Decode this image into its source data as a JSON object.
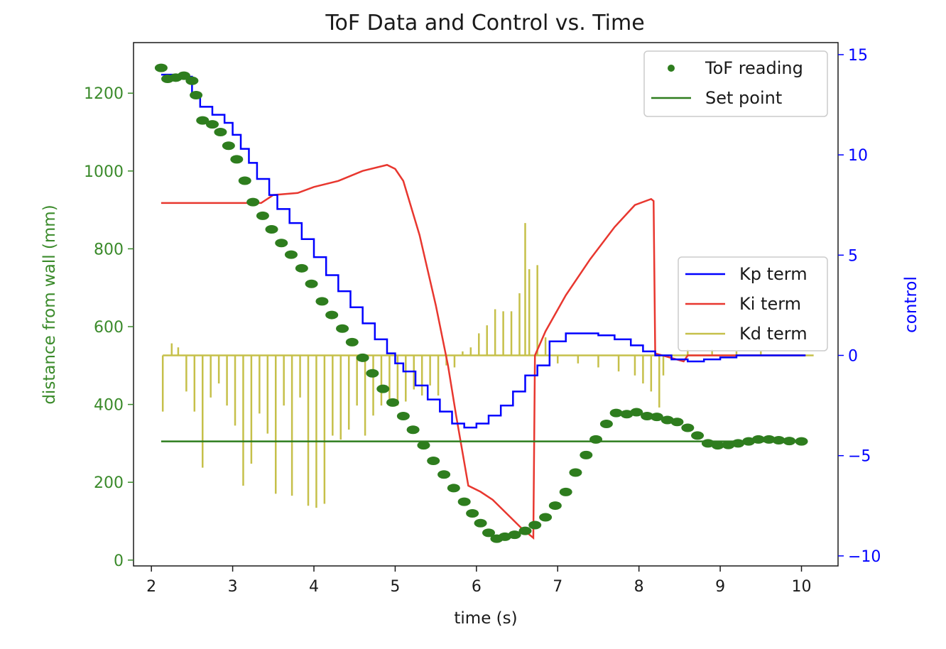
{
  "chart_data": {
    "type": "line",
    "title": "ToF Data and Control vs. Time",
    "xlabel": "time (s)",
    "ylabel_left": "distance from wall (mm)",
    "ylabel_right": "control",
    "xlim": [
      1.78,
      10.45
    ],
    "ylim_left": [
      -15,
      1330
    ],
    "ylim_right": [
      -10.5,
      15.6
    ],
    "x_ticks": [
      2,
      3,
      4,
      5,
      6,
      7,
      8,
      9,
      10
    ],
    "y_left_ticks": [
      0,
      200,
      400,
      600,
      800,
      1000,
      1200
    ],
    "y_right_ticks": [
      -10,
      -5,
      0,
      5,
      10,
      15
    ],
    "y_right_tick_labels": [
      "−10",
      "−5",
      "0",
      "5",
      "10",
      "15"
    ],
    "colors": {
      "tof": "#2e7d1e",
      "setpoint": "#2e7d1e",
      "kp": "#0000ff",
      "ki": "#e8372f",
      "kd": "#c6c04a",
      "left_axis": "#3a8a2a",
      "right_axis": "#0000ff"
    },
    "legends": [
      {
        "position": "upper-right",
        "entries": [
          {
            "label": "ToF reading",
            "key": "tof"
          },
          {
            "label": "Set point",
            "key": "setpoint"
          }
        ]
      },
      {
        "position": "center-right",
        "entries": [
          {
            "label": "Kp term",
            "key": "kp"
          },
          {
            "label": "Ki term",
            "key": "ki"
          },
          {
            "label": "Kd term",
            "key": "kd"
          }
        ]
      }
    ],
    "series": [
      {
        "name": "ToF reading",
        "axis": "left",
        "style": "scatter",
        "x": [
          2.12,
          2.2,
          2.3,
          2.4,
          2.5,
          2.55,
          2.63,
          2.75,
          2.85,
          2.95,
          3.05,
          3.15,
          3.25,
          3.37,
          3.48,
          3.6,
          3.72,
          3.85,
          3.97,
          4.1,
          4.22,
          4.35,
          4.47,
          4.6,
          4.72,
          4.85,
          4.97,
          5.1,
          5.22,
          5.35,
          5.47,
          5.6,
          5.72,
          5.85,
          5.95,
          6.05,
          6.15,
          6.25,
          6.35,
          6.47,
          6.6,
          6.72,
          6.85,
          6.97,
          7.1,
          7.22,
          7.35,
          7.47,
          7.6,
          7.72,
          7.85,
          7.97,
          8.1,
          8.22,
          8.35,
          8.47,
          8.6,
          8.72,
          8.85,
          8.97,
          9.1,
          9.22,
          9.35,
          9.47,
          9.6,
          9.72,
          9.85,
          10.0
        ],
        "y": [
          1265,
          1237,
          1240,
          1245,
          1232,
          1195,
          1130,
          1120,
          1100,
          1065,
          1030,
          975,
          920,
          885,
          850,
          815,
          785,
          750,
          710,
          665,
          630,
          595,
          560,
          520,
          480,
          440,
          405,
          370,
          335,
          295,
          255,
          220,
          185,
          150,
          120,
          95,
          70,
          55,
          60,
          65,
          75,
          90,
          110,
          140,
          175,
          225,
          270,
          310,
          350,
          378,
          375,
          380,
          370,
          368,
          360,
          355,
          340,
          320,
          300,
          295,
          296,
          300,
          305,
          310,
          310,
          308,
          306,
          305
        ]
      },
      {
        "name": "Set point",
        "axis": "left",
        "style": "line",
        "x": [
          2.12,
          10.05
        ],
        "y": [
          305,
          305
        ]
      },
      {
        "name": "Kp term",
        "axis": "right",
        "style": "step",
        "x": [
          2.12,
          2.3,
          2.5,
          2.6,
          2.75,
          2.9,
          3.0,
          3.1,
          3.2,
          3.3,
          3.45,
          3.55,
          3.7,
          3.85,
          4.0,
          4.15,
          4.3,
          4.45,
          4.6,
          4.75,
          4.9,
          5.0,
          5.1,
          5.25,
          5.4,
          5.55,
          5.7,
          5.85,
          6.0,
          6.15,
          6.3,
          6.45,
          6.6,
          6.75,
          6.9,
          7.1,
          7.3,
          7.5,
          7.7,
          7.9,
          8.05,
          8.2,
          8.4,
          8.6,
          8.8,
          9.0,
          9.2,
          9.5,
          9.8,
          10.05
        ],
        "y": [
          14.0,
          13.9,
          13.0,
          12.4,
          12.0,
          11.6,
          11.0,
          10.3,
          9.6,
          8.8,
          8.0,
          7.3,
          6.6,
          5.8,
          4.9,
          4.0,
          3.2,
          2.4,
          1.6,
          0.8,
          0.1,
          -0.4,
          -0.8,
          -1.5,
          -2.2,
          -2.8,
          -3.4,
          -3.6,
          -3.4,
          -3.0,
          -2.5,
          -1.8,
          -1.0,
          -0.5,
          0.7,
          1.1,
          1.1,
          1.0,
          0.8,
          0.5,
          0.2,
          0.0,
          -0.2,
          -0.3,
          -0.2,
          -0.1,
          0.0,
          0.0,
          0.0,
          0.0
        ]
      },
      {
        "name": "Ki term",
        "axis": "right",
        "style": "line",
        "x": [
          2.12,
          2.6,
          3.0,
          3.35,
          3.5,
          3.8,
          4.0,
          4.3,
          4.6,
          4.9,
          5.0,
          5.1,
          5.3,
          5.5,
          5.65,
          5.75,
          5.9,
          6.05,
          6.2,
          6.4,
          6.55,
          6.7,
          6.72,
          6.85,
          7.1,
          7.4,
          7.7,
          7.95,
          8.15,
          8.18,
          8.2,
          8.55,
          8.6,
          9.0,
          9.5,
          10.05
        ],
        "y": [
          7.6,
          7.6,
          7.6,
          7.6,
          8.0,
          8.1,
          8.4,
          8.7,
          9.2,
          9.5,
          9.3,
          8.7,
          6.0,
          2.5,
          -0.5,
          -3.0,
          -6.5,
          -6.8,
          -7.2,
          -8.0,
          -8.6,
          -9.1,
          0.0,
          1.2,
          3.0,
          4.8,
          6.4,
          7.5,
          7.8,
          7.7,
          0.1,
          -0.3,
          0.0,
          0.0,
          0.0,
          0.0
        ]
      },
      {
        "name": "Kd term",
        "axis": "right",
        "style": "spikes",
        "baseline": 0,
        "x": [
          2.14,
          2.25,
          2.33,
          2.43,
          2.53,
          2.63,
          2.73,
          2.83,
          2.93,
          3.03,
          3.13,
          3.23,
          3.33,
          3.43,
          3.53,
          3.63,
          3.73,
          3.83,
          3.93,
          4.03,
          4.13,
          4.23,
          4.33,
          4.43,
          4.53,
          4.63,
          4.73,
          4.83,
          4.93,
          5.03,
          5.13,
          5.23,
          5.33,
          5.43,
          5.53,
          5.63,
          5.73,
          5.83,
          5.93,
          6.03,
          6.13,
          6.23,
          6.33,
          6.43,
          6.53,
          6.6,
          6.65,
          6.75,
          6.85,
          7.0,
          7.25,
          7.5,
          7.75,
          7.95,
          8.05,
          8.15,
          8.25,
          8.3,
          8.6,
          8.9,
          9.2,
          9.5,
          9.8
        ],
        "y": [
          -2.8,
          0.6,
          0.4,
          -1.8,
          -2.8,
          -5.6,
          -2.1,
          -1.4,
          -2.5,
          -3.5,
          -6.5,
          -5.4,
          -2.9,
          -3.9,
          -6.9,
          -2.5,
          -7.0,
          -2.1,
          -7.5,
          -7.6,
          -7.4,
          -4.0,
          -4.2,
          -3.7,
          -2.5,
          -4.0,
          -3.0,
          -2.5,
          -2.3,
          -2.5,
          -2.3,
          -1.7,
          -2.0,
          -1.5,
          -2.0,
          -0.5,
          -0.6,
          0.2,
          0.4,
          1.1,
          1.5,
          2.3,
          2.2,
          2.2,
          3.1,
          6.6,
          4.3,
          4.5,
          0.9,
          -0.4,
          -0.4,
          -0.6,
          -0.8,
          -1.0,
          -1.4,
          -1.8,
          -2.6,
          -1.0,
          0.3,
          0.3,
          0.2,
          0.2,
          0.0
        ]
      }
    ]
  }
}
